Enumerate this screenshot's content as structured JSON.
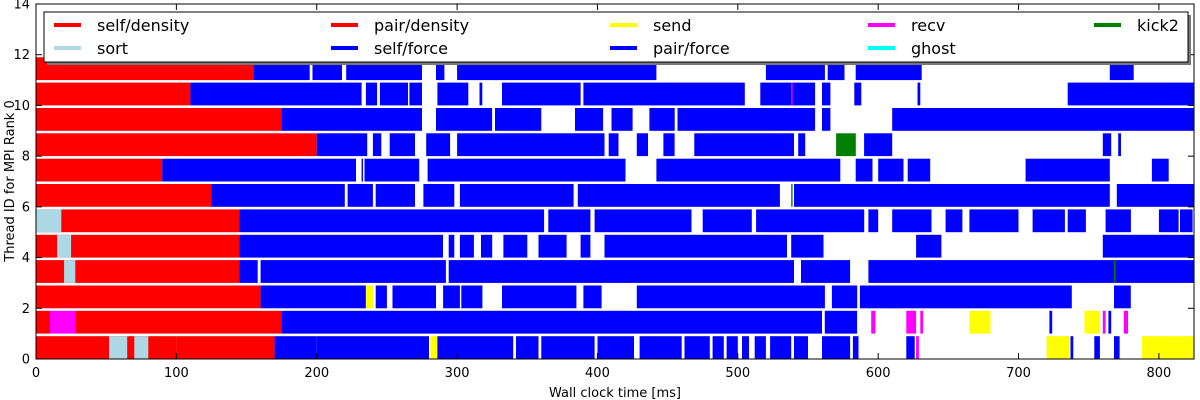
{
  "chart_data": {
    "type": "task-timeline",
    "xlabel": "Wall clock time [ms]",
    "ylabel": "Thread ID for MPI Rank 0",
    "xlim": [
      0,
      825
    ],
    "ylim": [
      0,
      14
    ],
    "x_ticks": [
      0,
      100,
      200,
      300,
      400,
      500,
      600,
      700,
      800
    ],
    "y_ticks": [
      0,
      2,
      4,
      6,
      8,
      10,
      12,
      14
    ],
    "legend_location": "top",
    "legend": [
      {
        "key": "self_density",
        "name": "self/density",
        "color": "#ff0000"
      },
      {
        "key": "sort",
        "name": "sort",
        "color": "#add8e6"
      },
      {
        "key": "pair_density",
        "name": "pair/density",
        "color": "#ff0000"
      },
      {
        "key": "self_force",
        "name": "self/force",
        "color": "#0000ff"
      },
      {
        "key": "send",
        "name": "send",
        "color": "#ffff00"
      },
      {
        "key": "pair_force",
        "name": "pair/force",
        "color": "#0000ff"
      },
      {
        "key": "recv",
        "name": "recv",
        "color": "#ff00ff"
      },
      {
        "key": "ghost",
        "name": "ghost",
        "color": "#00ffff"
      },
      {
        "key": "kick2",
        "name": "kick2",
        "color": "#008000"
      }
    ],
    "threads": [
      {
        "id": 0,
        "tasks": [
          {
            "type": "density",
            "start": 0,
            "end": 100
          },
          {
            "type": "sort",
            "start": 52,
            "end": 65
          },
          {
            "type": "sort",
            "start": 70,
            "end": 80
          },
          {
            "type": "density",
            "start": 100,
            "end": 170
          },
          {
            "type": "force",
            "start": 170,
            "end": 200
          },
          {
            "type": "force",
            "start": 200,
            "end": 280
          },
          {
            "type": "send",
            "start": 281,
            "end": 286
          },
          {
            "type": "force",
            "start": 286,
            "end": 340
          },
          {
            "type": "force",
            "start": 342,
            "end": 358
          },
          {
            "type": "force",
            "start": 360,
            "end": 398
          },
          {
            "type": "force",
            "start": 400,
            "end": 426
          },
          {
            "type": "force",
            "start": 430,
            "end": 460
          },
          {
            "type": "force",
            "start": 462,
            "end": 480
          },
          {
            "type": "force",
            "start": 482,
            "end": 490
          },
          {
            "type": "force",
            "start": 492,
            "end": 500
          },
          {
            "type": "force",
            "start": 503,
            "end": 508
          },
          {
            "type": "force",
            "start": 512,
            "end": 520
          },
          {
            "type": "force",
            "start": 523,
            "end": 538
          },
          {
            "type": "force",
            "start": 540,
            "end": 550
          },
          {
            "type": "force",
            "start": 560,
            "end": 580
          },
          {
            "type": "force",
            "start": 582,
            "end": 586
          },
          {
            "type": "force",
            "start": 620,
            "end": 626
          },
          {
            "type": "recv",
            "start": 627,
            "end": 629
          },
          {
            "type": "send",
            "start": 720,
            "end": 736
          },
          {
            "type": "force",
            "start": 737,
            "end": 739
          },
          {
            "type": "force",
            "start": 754,
            "end": 758
          },
          {
            "type": "force",
            "start": 768,
            "end": 772
          },
          {
            "type": "send",
            "start": 788,
            "end": 825
          }
        ]
      },
      {
        "id": 1,
        "tasks": [
          {
            "type": "density",
            "start": 0,
            "end": 10
          },
          {
            "type": "recv",
            "start": 10,
            "end": 28
          },
          {
            "type": "density",
            "start": 28,
            "end": 175
          },
          {
            "type": "force",
            "start": 175,
            "end": 560
          },
          {
            "type": "force",
            "start": 562,
            "end": 585
          },
          {
            "type": "recv",
            "start": 595,
            "end": 598
          },
          {
            "type": "recv",
            "start": 620,
            "end": 627
          },
          {
            "type": "recv",
            "start": 630,
            "end": 632
          },
          {
            "type": "send",
            "start": 665,
            "end": 680
          },
          {
            "type": "force",
            "start": 722,
            "end": 724
          },
          {
            "type": "send",
            "start": 747,
            "end": 758
          },
          {
            "type": "recv",
            "start": 760,
            "end": 762
          },
          {
            "type": "force",
            "start": 764,
            "end": 766
          },
          {
            "type": "recv",
            "start": 775,
            "end": 778
          }
        ]
      },
      {
        "id": 2,
        "tasks": [
          {
            "type": "density",
            "start": 0,
            "end": 160
          },
          {
            "type": "force",
            "start": 160,
            "end": 235
          },
          {
            "type": "send",
            "start": 235,
            "end": 240
          },
          {
            "type": "force",
            "start": 242,
            "end": 250
          },
          {
            "type": "force",
            "start": 254,
            "end": 285
          },
          {
            "type": "force",
            "start": 290,
            "end": 302
          },
          {
            "type": "force",
            "start": 303,
            "end": 318
          },
          {
            "type": "force",
            "start": 332,
            "end": 385
          },
          {
            "type": "force",
            "start": 390,
            "end": 403
          },
          {
            "type": "force",
            "start": 428,
            "end": 562
          },
          {
            "type": "force",
            "start": 567,
            "end": 585
          },
          {
            "type": "force",
            "start": 587,
            "end": 738
          },
          {
            "type": "force",
            "start": 768,
            "end": 780
          }
        ]
      },
      {
        "id": 3,
        "tasks": [
          {
            "type": "density",
            "start": 0,
            "end": 145
          },
          {
            "type": "sort",
            "start": 20,
            "end": 28
          },
          {
            "type": "force",
            "start": 145,
            "end": 158
          },
          {
            "type": "force",
            "start": 160,
            "end": 292
          },
          {
            "type": "force",
            "start": 294,
            "end": 540
          },
          {
            "type": "force",
            "start": 545,
            "end": 580
          },
          {
            "type": "force",
            "start": 593,
            "end": 825
          },
          {
            "type": "kick2",
            "start": 768,
            "end": 769
          }
        ]
      },
      {
        "id": 4,
        "tasks": [
          {
            "type": "density",
            "start": 0,
            "end": 145
          },
          {
            "type": "sort",
            "start": 15,
            "end": 25
          },
          {
            "type": "force",
            "start": 145,
            "end": 290
          },
          {
            "type": "force",
            "start": 294,
            "end": 298
          },
          {
            "type": "force",
            "start": 302,
            "end": 312
          },
          {
            "type": "force",
            "start": 317,
            "end": 325
          },
          {
            "type": "force",
            "start": 333,
            "end": 350
          },
          {
            "type": "force",
            "start": 358,
            "end": 378
          },
          {
            "type": "force",
            "start": 388,
            "end": 395
          },
          {
            "type": "force",
            "start": 405,
            "end": 535
          },
          {
            "type": "force",
            "start": 538,
            "end": 561
          },
          {
            "type": "force",
            "start": 627,
            "end": 645
          },
          {
            "type": "force",
            "start": 760,
            "end": 825
          }
        ]
      },
      {
        "id": 5,
        "tasks": [
          {
            "type": "density",
            "start": 0,
            "end": 145
          },
          {
            "type": "sort",
            "start": 0,
            "end": 18
          },
          {
            "type": "force",
            "start": 145,
            "end": 362
          },
          {
            "type": "force",
            "start": 365,
            "end": 395
          },
          {
            "type": "force",
            "start": 398,
            "end": 467
          },
          {
            "type": "force",
            "start": 475,
            "end": 510
          },
          {
            "type": "force",
            "start": 513,
            "end": 590
          },
          {
            "type": "force",
            "start": 593,
            "end": 600
          },
          {
            "type": "force",
            "start": 610,
            "end": 638
          },
          {
            "type": "force",
            "start": 648,
            "end": 660
          },
          {
            "type": "force",
            "start": 665,
            "end": 700
          },
          {
            "type": "force",
            "start": 710,
            "end": 733
          },
          {
            "type": "force",
            "start": 735,
            "end": 748
          },
          {
            "type": "force",
            "start": 762,
            "end": 780
          },
          {
            "type": "force",
            "start": 800,
            "end": 814
          },
          {
            "type": "force",
            "start": 815,
            "end": 824
          }
        ]
      },
      {
        "id": 6,
        "tasks": [
          {
            "type": "density",
            "start": 0,
            "end": 125
          },
          {
            "type": "force",
            "start": 125,
            "end": 220
          },
          {
            "type": "force",
            "start": 222,
            "end": 240
          },
          {
            "type": "force",
            "start": 242,
            "end": 270
          },
          {
            "type": "force",
            "start": 276,
            "end": 298
          },
          {
            "type": "force",
            "start": 302,
            "end": 383
          },
          {
            "type": "force",
            "start": 386,
            "end": 530
          },
          {
            "type": "kick2",
            "start": 538,
            "end": 539
          },
          {
            "type": "force",
            "start": 540,
            "end": 765
          },
          {
            "type": "force",
            "start": 770,
            "end": 825
          }
        ]
      },
      {
        "id": 7,
        "tasks": [
          {
            "type": "density",
            "start": 0,
            "end": 90
          },
          {
            "type": "force",
            "start": 90,
            "end": 228
          },
          {
            "type": "force",
            "start": 232,
            "end": 233
          },
          {
            "type": "force",
            "start": 234,
            "end": 273
          },
          {
            "type": "force",
            "start": 279,
            "end": 420
          },
          {
            "type": "force",
            "start": 442,
            "end": 573
          },
          {
            "type": "force",
            "start": 584,
            "end": 596
          },
          {
            "type": "force",
            "start": 600,
            "end": 618
          },
          {
            "type": "force",
            "start": 621,
            "end": 637
          },
          {
            "type": "force",
            "start": 705,
            "end": 765
          },
          {
            "type": "force",
            "start": 795,
            "end": 807
          }
        ]
      },
      {
        "id": 8,
        "tasks": [
          {
            "type": "density",
            "start": 0,
            "end": 200
          },
          {
            "type": "force",
            "start": 200,
            "end": 236
          },
          {
            "type": "force",
            "start": 240,
            "end": 246
          },
          {
            "type": "force",
            "start": 252,
            "end": 270
          },
          {
            "type": "force",
            "start": 278,
            "end": 295
          },
          {
            "type": "force",
            "start": 300,
            "end": 405
          },
          {
            "type": "force",
            "start": 408,
            "end": 415
          },
          {
            "type": "force",
            "start": 428,
            "end": 436
          },
          {
            "type": "force",
            "start": 447,
            "end": 455
          },
          {
            "type": "force",
            "start": 469,
            "end": 540
          },
          {
            "type": "force",
            "start": 543,
            "end": 548
          },
          {
            "type": "kick2",
            "start": 570,
            "end": 584
          },
          {
            "type": "force",
            "start": 590,
            "end": 610
          },
          {
            "type": "force",
            "start": 760,
            "end": 766
          },
          {
            "type": "force",
            "start": 771,
            "end": 773
          }
        ]
      },
      {
        "id": 9,
        "tasks": [
          {
            "type": "density",
            "start": 0,
            "end": 175
          },
          {
            "type": "force",
            "start": 175,
            "end": 275
          },
          {
            "type": "force",
            "start": 285,
            "end": 325
          },
          {
            "type": "force",
            "start": 327,
            "end": 360
          },
          {
            "type": "force",
            "start": 384,
            "end": 404
          },
          {
            "type": "force",
            "start": 410,
            "end": 425
          },
          {
            "type": "force",
            "start": 437,
            "end": 455
          },
          {
            "type": "force",
            "start": 457,
            "end": 555
          },
          {
            "type": "force",
            "start": 560,
            "end": 566
          },
          {
            "type": "force",
            "start": 610,
            "end": 825
          }
        ]
      },
      {
        "id": 10,
        "tasks": [
          {
            "type": "density",
            "start": 0,
            "end": 110
          },
          {
            "type": "force",
            "start": 110,
            "end": 232
          },
          {
            "type": "force",
            "start": 235,
            "end": 243
          },
          {
            "type": "force",
            "start": 245,
            "end": 265
          },
          {
            "type": "force",
            "start": 266,
            "end": 275
          },
          {
            "type": "force",
            "start": 286,
            "end": 308
          },
          {
            "type": "force",
            "start": 316,
            "end": 318
          },
          {
            "type": "force",
            "start": 332,
            "end": 388
          },
          {
            "type": "force",
            "start": 390,
            "end": 505
          },
          {
            "type": "force",
            "start": 516,
            "end": 540
          },
          {
            "type": "recv",
            "start": 538,
            "end": 539
          },
          {
            "type": "force",
            "start": 540,
            "end": 555
          },
          {
            "type": "force",
            "start": 560,
            "end": 566
          },
          {
            "type": "force",
            "start": 583,
            "end": 588
          },
          {
            "type": "force",
            "start": 628,
            "end": 630
          },
          {
            "type": "force",
            "start": 735,
            "end": 825
          }
        ]
      },
      {
        "id": 11,
        "tasks": [
          {
            "type": "density",
            "start": 0,
            "end": 155
          },
          {
            "type": "force",
            "start": 155,
            "end": 195
          },
          {
            "type": "force",
            "start": 197,
            "end": 218
          },
          {
            "type": "force",
            "start": 221,
            "end": 275
          },
          {
            "type": "force",
            "start": 285,
            "end": 291
          },
          {
            "type": "force",
            "start": 300,
            "end": 442
          },
          {
            "type": "force",
            "start": 520,
            "end": 562
          },
          {
            "type": "force",
            "start": 564,
            "end": 576
          },
          {
            "type": "force",
            "start": 584,
            "end": 631
          },
          {
            "type": "force",
            "start": 765,
            "end": 782
          }
        ]
      }
    ]
  }
}
